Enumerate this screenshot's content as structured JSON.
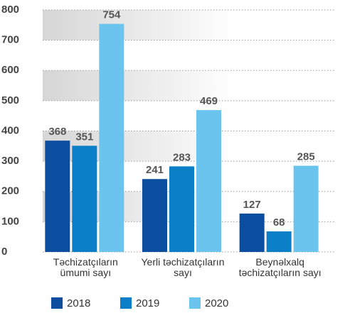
{
  "chart_data": {
    "type": "bar",
    "categories": [
      "Təchizatçıların ümumi sayı",
      "Yerli təchizatçıların sayı",
      "Beynəlxalq təchizatçıların sayı"
    ],
    "series": [
      {
        "name": "2018",
        "color": "#0b4e9f",
        "values": [
          368,
          241,
          127
        ]
      },
      {
        "name": "2019",
        "color": "#0a7fc8",
        "values": [
          351,
          283,
          68
        ]
      },
      {
        "name": "2020",
        "color": "#6ac4ee",
        "values": [
          754,
          469,
          285
        ]
      }
    ],
    "ylim": [
      0,
      800
    ],
    "yticks": [
      0,
      100,
      200,
      300,
      400,
      500,
      600,
      700,
      800
    ],
    "grid": true,
    "legend": "bottom"
  }
}
